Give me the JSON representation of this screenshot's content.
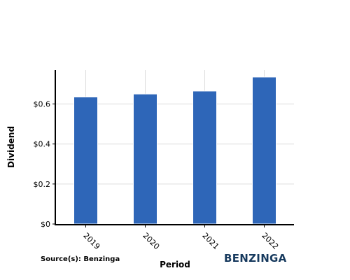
{
  "chart_data": {
    "type": "bar",
    "categories": [
      "2019",
      "2020",
      "2021",
      "2022"
    ],
    "values": [
      0.635,
      0.65,
      0.665,
      0.735
    ],
    "xlabel": "Period",
    "ylabel": "Dividend",
    "yticks": [
      "$0",
      "$0.2",
      "$0.4",
      "$0.6"
    ],
    "ytick_values": [
      0,
      0.2,
      0.4,
      0.6
    ],
    "ylim": [
      0,
      0.77
    ],
    "grid": true,
    "bar_color": "#2e66b8",
    "grid_color": "#dddddd"
  },
  "source_label": "Source(s): Benzinga",
  "brand": "BENZINGA"
}
